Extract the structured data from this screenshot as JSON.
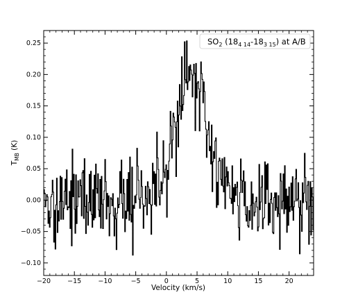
{
  "chart_data": {
    "type": "line",
    "step": true,
    "xlabel": "Velocity (km/s)",
    "ylabel": {
      "main": "T",
      "sub": "MB",
      "rest": " (K)"
    },
    "xlim": [
      -20,
      24
    ],
    "ylim": [
      -0.12,
      0.27
    ],
    "xticks": [
      -20,
      -15,
      -10,
      -5,
      0,
      5,
      10,
      15,
      20
    ],
    "yticks": [
      -0.1,
      -0.05,
      0.0,
      0.05,
      0.1,
      0.15,
      0.2,
      0.25
    ],
    "xtick_labels": [
      "−20",
      "−15",
      "−10",
      "−5",
      "0",
      "5",
      "10",
      "15",
      "20"
    ],
    "ytick_labels": [
      "−0.10",
      "−0.05",
      "0.00",
      "0.05",
      "0.10",
      "0.15",
      "0.20",
      "0.25"
    ],
    "grid": false,
    "legend": {
      "placement": "top-right",
      "parts": [
        {
          "text": "SO",
          "style": "normal"
        },
        {
          "text": "2",
          "style": "sub"
        },
        {
          "text": " (18",
          "style": "normal"
        },
        {
          "text": "4 14",
          "style": "sub"
        },
        {
          "text": "-18",
          "style": "normal"
        },
        {
          "text": "3 15",
          "style": "sub"
        },
        {
          "text": ") at A/B",
          "style": "normal"
        }
      ]
    },
    "series": [
      {
        "x_start": -20,
        "x_end": 24,
        "baseline": 0.0,
        "peak_velocity": 3.8,
        "peak_value": 0.19,
        "peak_width": 2.7,
        "noise_rms": 0.035
      }
    ]
  }
}
